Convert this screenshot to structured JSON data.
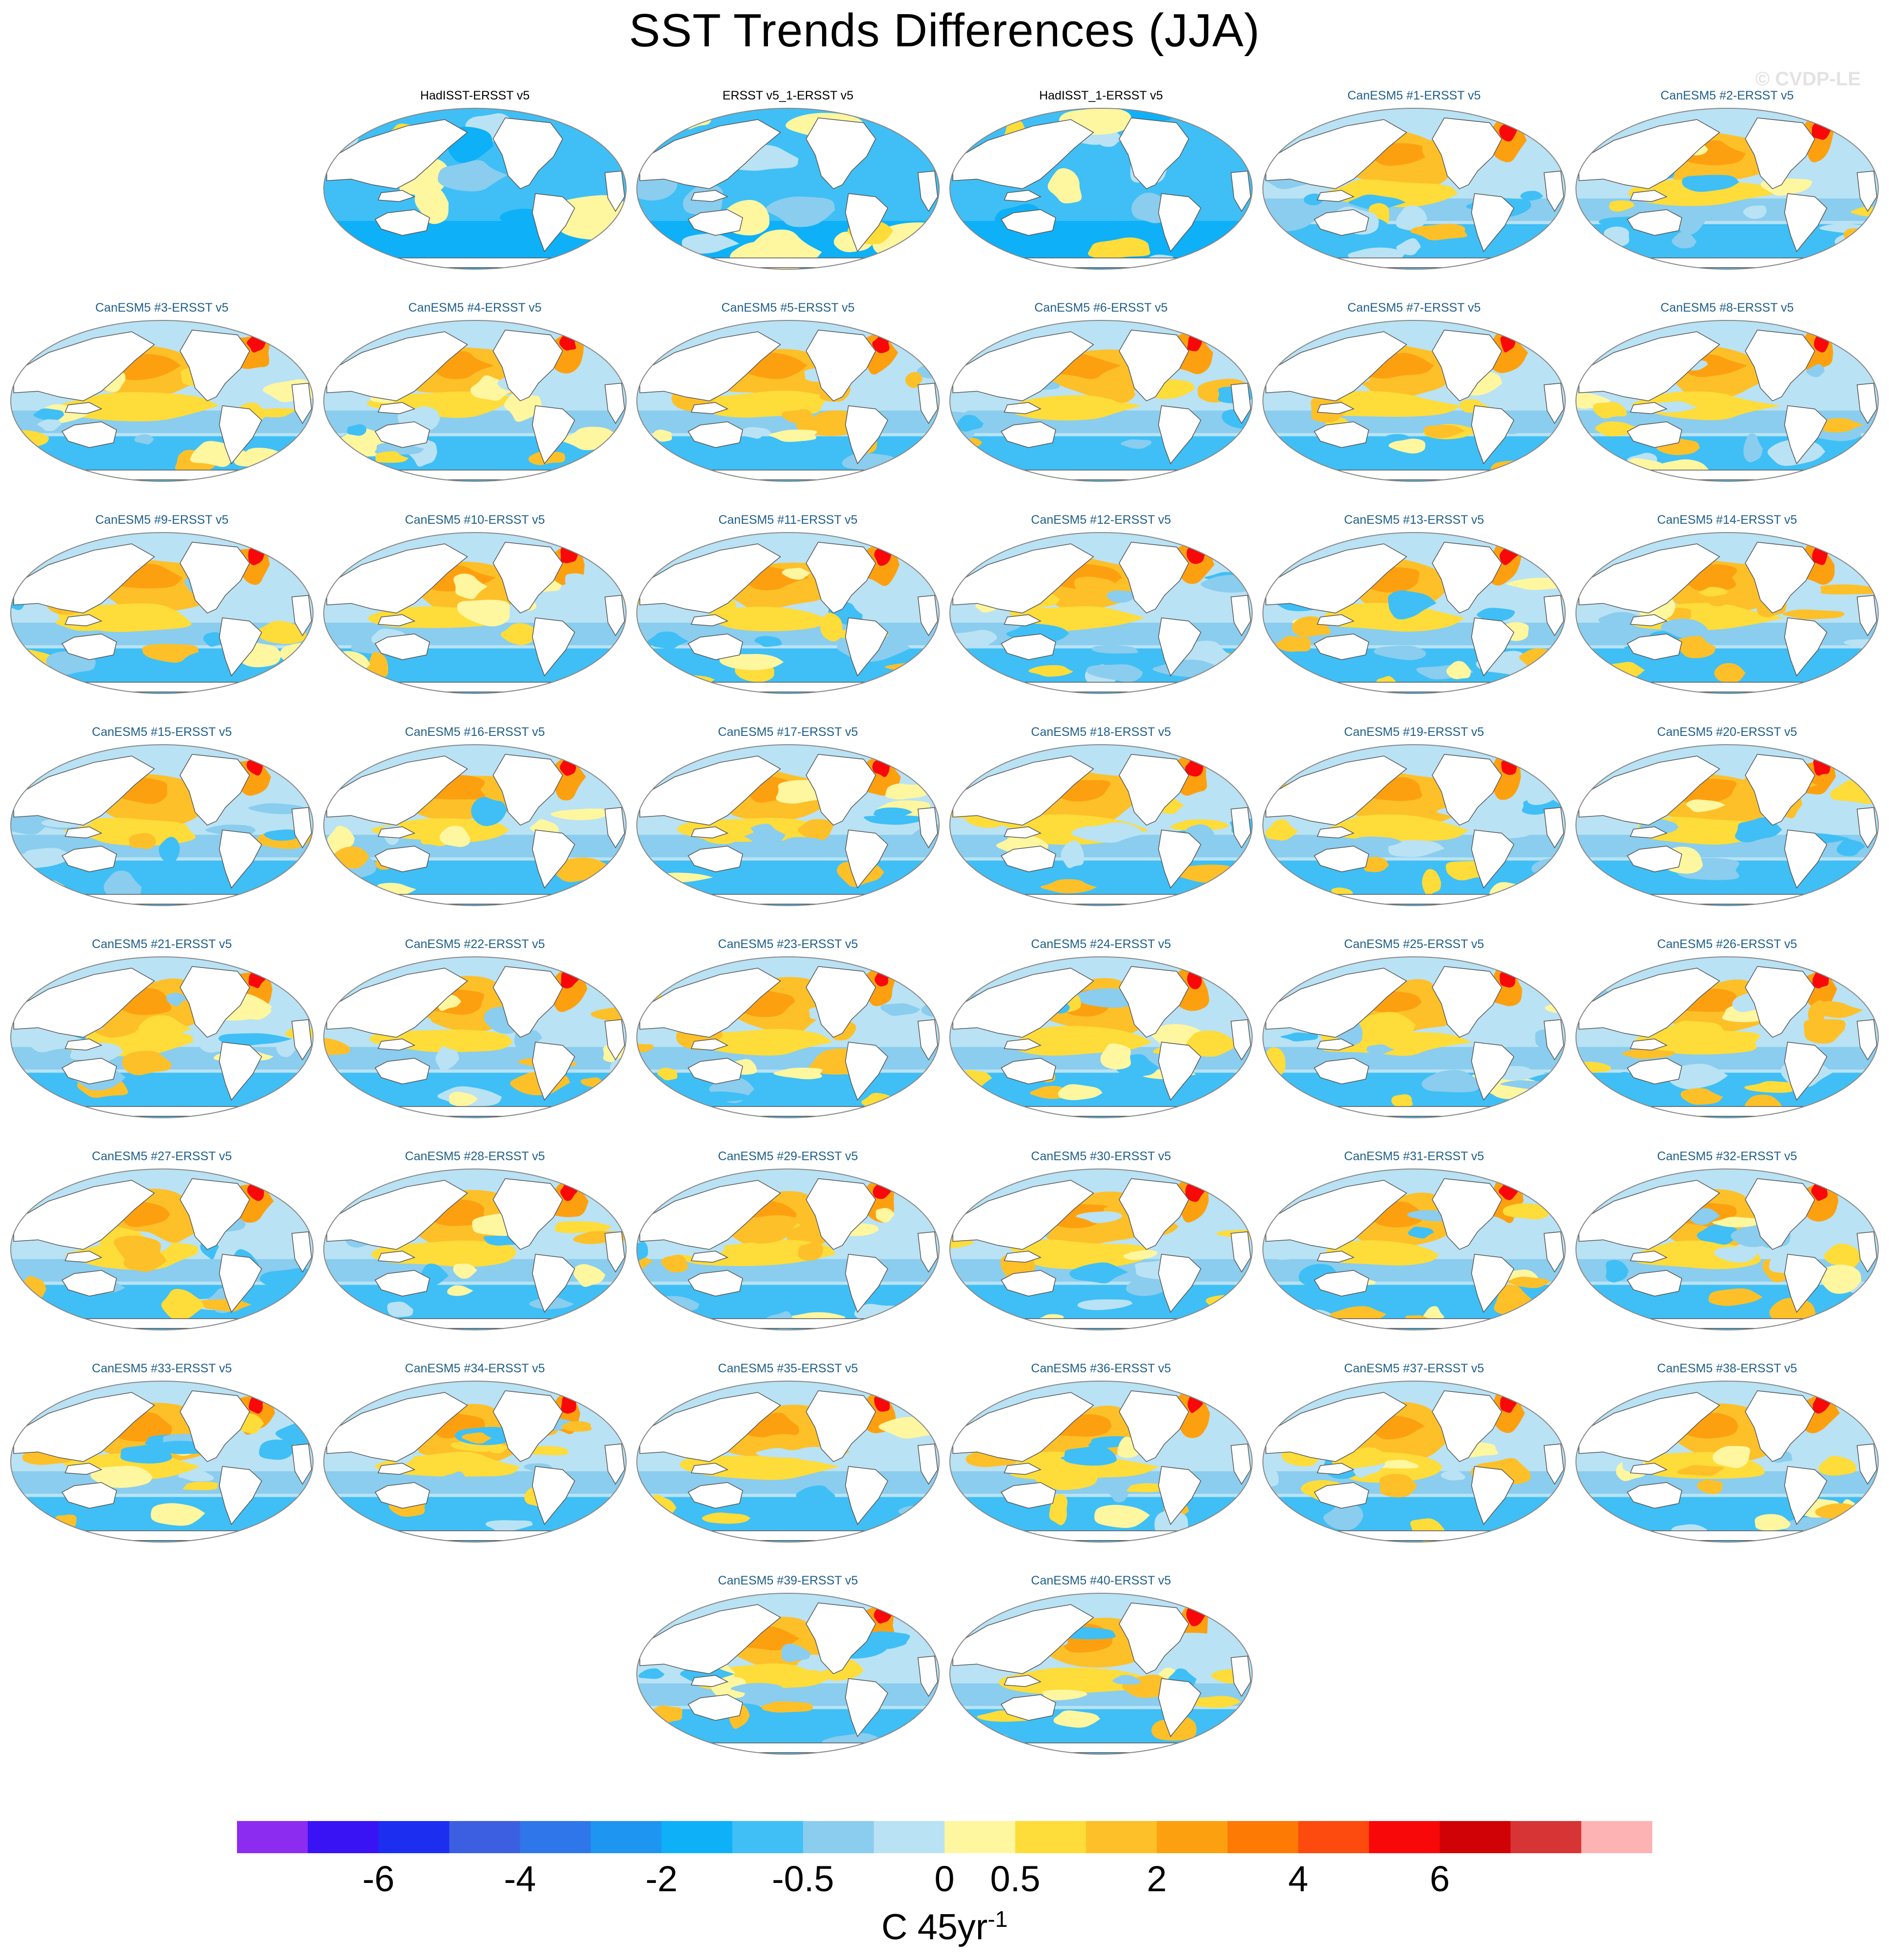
{
  "title": "SST Trends Differences (JJA)",
  "watermark": "© CVDP-LE",
  "colors": {
    "obs_title": "#000000",
    "model_title": "#1f5f8a",
    "land": "#ffffff",
    "coast": "#555555"
  },
  "panels": [
    {
      "title": "HadISST-ERSST v5",
      "kind": "obs",
      "mean_sign": "negative"
    },
    {
      "title": "ERSST v5_1-ERSST v5",
      "kind": "obs",
      "mean_sign": "negative"
    },
    {
      "title": "HadISST_1-ERSST v5",
      "kind": "obs",
      "mean_sign": "negative"
    },
    {
      "title": "CanESM5 #1-ERSST v5",
      "kind": "model",
      "mean_sign": "positive"
    },
    {
      "title": "CanESM5 #2-ERSST v5",
      "kind": "model",
      "mean_sign": "positive"
    },
    {
      "title": "CanESM5 #3-ERSST v5",
      "kind": "model",
      "mean_sign": "positive"
    },
    {
      "title": "CanESM5 #4-ERSST v5",
      "kind": "model",
      "mean_sign": "positive"
    },
    {
      "title": "CanESM5 #5-ERSST v5",
      "kind": "model",
      "mean_sign": "positive"
    },
    {
      "title": "CanESM5 #6-ERSST v5",
      "kind": "model",
      "mean_sign": "positive"
    },
    {
      "title": "CanESM5 #7-ERSST v5",
      "kind": "model",
      "mean_sign": "positive"
    },
    {
      "title": "CanESM5 #8-ERSST v5",
      "kind": "model",
      "mean_sign": "positive"
    },
    {
      "title": "CanESM5 #9-ERSST v5",
      "kind": "model",
      "mean_sign": "positive"
    },
    {
      "title": "CanESM5 #10-ERSST v5",
      "kind": "model",
      "mean_sign": "positive"
    },
    {
      "title": "CanESM5 #11-ERSST v5",
      "kind": "model",
      "mean_sign": "positive"
    },
    {
      "title": "CanESM5 #12-ERSST v5",
      "kind": "model",
      "mean_sign": "positive"
    },
    {
      "title": "CanESM5 #13-ERSST v5",
      "kind": "model",
      "mean_sign": "positive"
    },
    {
      "title": "CanESM5 #14-ERSST v5",
      "kind": "model",
      "mean_sign": "positive"
    },
    {
      "title": "CanESM5 #15-ERSST v5",
      "kind": "model",
      "mean_sign": "positive"
    },
    {
      "title": "CanESM5 #16-ERSST v5",
      "kind": "model",
      "mean_sign": "positive"
    },
    {
      "title": "CanESM5 #17-ERSST v5",
      "kind": "model",
      "mean_sign": "positive"
    },
    {
      "title": "CanESM5 #18-ERSST v5",
      "kind": "model",
      "mean_sign": "positive"
    },
    {
      "title": "CanESM5 #19-ERSST v5",
      "kind": "model",
      "mean_sign": "positive"
    },
    {
      "title": "CanESM5 #20-ERSST v5",
      "kind": "model",
      "mean_sign": "positive"
    },
    {
      "title": "CanESM5 #21-ERSST v5",
      "kind": "model",
      "mean_sign": "positive"
    },
    {
      "title": "CanESM5 #22-ERSST v5",
      "kind": "model",
      "mean_sign": "positive"
    },
    {
      "title": "CanESM5 #23-ERSST v5",
      "kind": "model",
      "mean_sign": "positive"
    },
    {
      "title": "CanESM5 #24-ERSST v5",
      "kind": "model",
      "mean_sign": "positive"
    },
    {
      "title": "CanESM5 #25-ERSST v5",
      "kind": "model",
      "mean_sign": "positive"
    },
    {
      "title": "CanESM5 #26-ERSST v5",
      "kind": "model",
      "mean_sign": "positive"
    },
    {
      "title": "CanESM5 #27-ERSST v5",
      "kind": "model",
      "mean_sign": "positive"
    },
    {
      "title": "CanESM5 #28-ERSST v5",
      "kind": "model",
      "mean_sign": "positive"
    },
    {
      "title": "CanESM5 #29-ERSST v5",
      "kind": "model",
      "mean_sign": "positive"
    },
    {
      "title": "CanESM5 #30-ERSST v5",
      "kind": "model",
      "mean_sign": "positive"
    },
    {
      "title": "CanESM5 #31-ERSST v5",
      "kind": "model",
      "mean_sign": "positive"
    },
    {
      "title": "CanESM5 #32-ERSST v5",
      "kind": "model",
      "mean_sign": "positive"
    },
    {
      "title": "CanESM5 #33-ERSST v5",
      "kind": "model",
      "mean_sign": "positive"
    },
    {
      "title": "CanESM5 #34-ERSST v5",
      "kind": "model",
      "mean_sign": "positive"
    },
    {
      "title": "CanESM5 #35-ERSST v5",
      "kind": "model",
      "mean_sign": "positive"
    },
    {
      "title": "CanESM5 #36-ERSST v5",
      "kind": "model",
      "mean_sign": "positive"
    },
    {
      "title": "CanESM5 #37-ERSST v5",
      "kind": "model",
      "mean_sign": "positive"
    },
    {
      "title": "CanESM5 #38-ERSST v5",
      "kind": "model",
      "mean_sign": "positive"
    },
    {
      "title": "CanESM5 #39-ERSST v5",
      "kind": "model",
      "mean_sign": "positive"
    },
    {
      "title": "CanESM5 #40-ERSST v5",
      "kind": "model",
      "mean_sign": "positive"
    }
  ],
  "colorbar": {
    "colors": [
      "#8b2cf0",
      "#3a13f5",
      "#1c2ef0",
      "#3c5ee0",
      "#2f76ea",
      "#1f95f2",
      "#0eb0f8",
      "#3fbff5",
      "#8acdee",
      "#b9e2f4",
      "#fff6a0",
      "#fedc3a",
      "#fdc029",
      "#fda010",
      "#fd7a05",
      "#fd4a0e",
      "#f80808",
      "#d10205",
      "#d73535",
      "#fdb3b3"
    ],
    "labels": [
      "-6",
      "-4",
      "-2",
      "-0.5",
      "0",
      "0.5",
      "2",
      "4",
      "6"
    ],
    "label_bins": [
      2,
      4,
      6,
      8,
      10,
      11,
      13,
      15,
      17
    ],
    "unit_text": "C 45yr",
    "unit_sup": "-1"
  }
}
